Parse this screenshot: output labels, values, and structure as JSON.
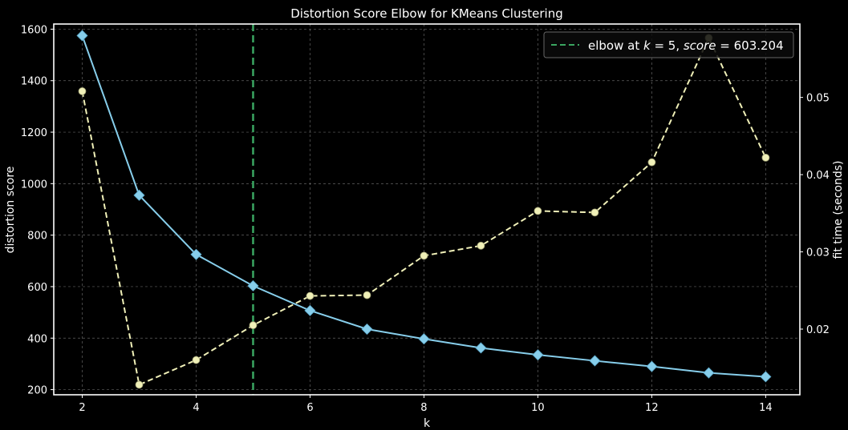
{
  "chart_data": {
    "type": "line",
    "title": "Distortion Score Elbow for KMeans Clustering",
    "xlabel": "k",
    "ylabel": "distortion score",
    "y2label": "fit time (seconds)",
    "xlim": [
      1.5,
      14.6
    ],
    "ylim": [
      180,
      1620
    ],
    "y2lim": [
      0.0115,
      0.0595
    ],
    "x_ticks": [
      2,
      4,
      6,
      8,
      10,
      12,
      14
    ],
    "y_ticks": [
      200,
      400,
      600,
      800,
      1000,
      1200,
      1400,
      1600
    ],
    "y2_ticks": [
      0.02,
      0.03,
      0.04,
      0.05
    ],
    "grid": true,
    "legend_position": "top-right",
    "legend_prefix": "elbow at ",
    "legend_k": "k",
    "legend_eq1": " = 5, ",
    "legend_score": "score",
    "legend_eq2": " = 603.204",
    "series": [
      {
        "role": "distortion",
        "axis": "left",
        "marker": "diamond",
        "color": "#87ceeb",
        "x": [
          2,
          3,
          4,
          5,
          6,
          7,
          8,
          9,
          10,
          11,
          12,
          13,
          14
        ],
        "values": [
          1575,
          955,
          725,
          603,
          507,
          435,
          397,
          362,
          335,
          312,
          290,
          265,
          250
        ]
      },
      {
        "role": "fit-time",
        "axis": "right",
        "marker": "circle",
        "color": "#f0f0b8",
        "x": [
          2,
          3,
          4,
          5,
          6,
          7,
          8,
          9,
          10,
          11,
          12,
          13,
          14
        ],
        "values": [
          0.0508,
          0.0128,
          0.016,
          0.0205,
          0.0243,
          0.0244,
          0.0295,
          0.0308,
          0.0353,
          0.0351,
          0.0416,
          0.0577,
          0.0422
        ]
      }
    ],
    "elbow": {
      "k": 5,
      "color": "#3aa661"
    },
    "colors": {
      "background": "#000000",
      "frame": "#ffffff",
      "grid": "#8c8c8c"
    }
  }
}
